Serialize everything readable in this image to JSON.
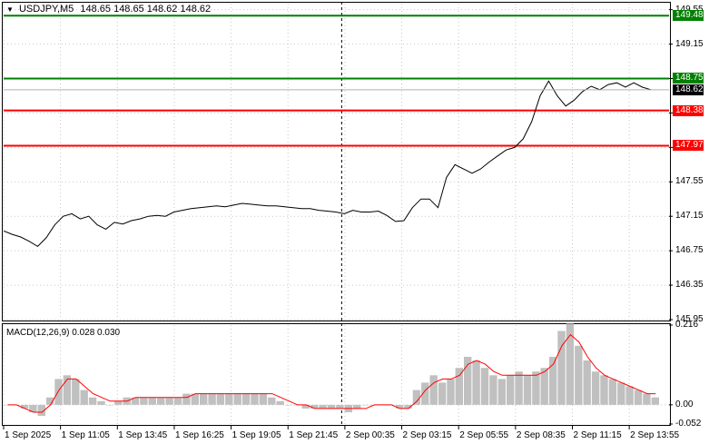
{
  "chart_header": {
    "symbol_tf": "USDJPY,M5",
    "ohlc": "148.65 148.65 148.62 148.62",
    "collapse_icon": "triangle-down-icon"
  },
  "macd_header": {
    "label": "MACD(12,26,9) 0.028 0.030"
  },
  "price_axis": {
    "ticks": [
      "149.55",
      "149.15",
      "148.75",
      "148.35",
      "147.95",
      "147.55",
      "147.15",
      "146.75",
      "146.35",
      "145.95"
    ]
  },
  "macd_axis": {
    "ticks": [
      "0.216",
      "0.00",
      "-0.052"
    ]
  },
  "levels": [
    {
      "label": "149.48",
      "value": 149.48,
      "color": "#008000",
      "kind": "target"
    },
    {
      "label": "148.75",
      "value": 148.75,
      "color": "#008000",
      "kind": "entry"
    },
    {
      "label": "148.38",
      "value": 148.38,
      "color": "#ff0000",
      "kind": "entry"
    },
    {
      "label": "147.97",
      "value": 147.97,
      "color": "#ff0000",
      "kind": "target"
    }
  ],
  "current_price": {
    "label": "148.62",
    "value": 148.62
  },
  "time_axis": {
    "ticks": [
      "1 Sep 2025",
      "1 Sep 11:05",
      "1 Sep 13:45",
      "1 Sep 16:25",
      "1 Sep 19:05",
      "1 Sep 21:45",
      "2 Sep 00:35",
      "2 Sep 03:15",
      "2 Sep 05:55",
      "2 Sep 08:35",
      "2 Sep 11:15",
      "2 Sep 13:55"
    ]
  },
  "chart_data": {
    "type": "line",
    "title": "USDJPY,M5",
    "ylim": [
      145.95,
      149.62
    ],
    "price_series": [
      146.98,
      146.94,
      146.91,
      146.86,
      146.8,
      146.9,
      147.05,
      147.15,
      147.18,
      147.12,
      147.15,
      147.05,
      147.0,
      147.08,
      147.06,
      147.1,
      147.12,
      147.15,
      147.16,
      147.15,
      147.2,
      147.22,
      147.24,
      147.25,
      147.26,
      147.27,
      147.26,
      147.28,
      147.3,
      147.29,
      147.28,
      147.27,
      147.27,
      147.26,
      147.25,
      147.24,
      147.24,
      147.22,
      147.21,
      147.2,
      147.18,
      147.22,
      147.2,
      147.2,
      147.21,
      147.16,
      147.09,
      147.1,
      147.25,
      147.35,
      147.35,
      147.25,
      147.6,
      147.75,
      147.7,
      147.65,
      147.7,
      147.78,
      147.85,
      147.92,
      147.95,
      148.05,
      148.25,
      148.55,
      148.72,
      148.55,
      148.43,
      148.5,
      148.6,
      148.66,
      148.62,
      148.68,
      148.7,
      148.65,
      148.7,
      148.65,
      148.62
    ],
    "macd_ylim": [
      -0.052,
      0.216
    ],
    "macd_histogram": [
      0.0,
      0.0,
      -0.01,
      -0.02,
      -0.03,
      0.02,
      0.07,
      0.08,
      0.07,
      0.04,
      0.02,
      0.01,
      0.0,
      0.01,
      0.02,
      0.02,
      0.02,
      0.02,
      0.02,
      0.02,
      0.02,
      0.03,
      0.03,
      0.03,
      0.03,
      0.03,
      0.03,
      0.03,
      0.03,
      0.03,
      0.03,
      0.02,
      0.01,
      0.0,
      0.0,
      -0.01,
      -0.01,
      -0.01,
      -0.01,
      -0.01,
      -0.02,
      -0.01,
      0.0,
      0.0,
      0.0,
      0.0,
      -0.01,
      -0.01,
      0.04,
      0.06,
      0.08,
      0.06,
      0.07,
      0.1,
      0.13,
      0.12,
      0.1,
      0.08,
      0.07,
      0.08,
      0.09,
      0.08,
      0.09,
      0.1,
      0.13,
      0.2,
      0.22,
      0.16,
      0.12,
      0.09,
      0.08,
      0.07,
      0.06,
      0.05,
      0.04,
      0.03,
      0.02
    ],
    "macd_signal": [
      0.0,
      0.0,
      -0.01,
      -0.02,
      -0.02,
      0.0,
      0.04,
      0.07,
      0.07,
      0.05,
      0.03,
      0.02,
      0.01,
      0.01,
      0.01,
      0.02,
      0.02,
      0.02,
      0.02,
      0.02,
      0.02,
      0.02,
      0.03,
      0.03,
      0.03,
      0.03,
      0.03,
      0.03,
      0.03,
      0.03,
      0.03,
      0.03,
      0.02,
      0.01,
      0.0,
      0.0,
      -0.01,
      -0.01,
      -0.01,
      -0.01,
      -0.01,
      -0.01,
      -0.01,
      0.0,
      0.0,
      0.0,
      -0.01,
      -0.01,
      0.01,
      0.04,
      0.06,
      0.07,
      0.07,
      0.08,
      0.11,
      0.12,
      0.11,
      0.09,
      0.08,
      0.08,
      0.08,
      0.08,
      0.08,
      0.09,
      0.11,
      0.16,
      0.19,
      0.17,
      0.13,
      0.1,
      0.08,
      0.07,
      0.06,
      0.05,
      0.04,
      0.03,
      0.03
    ],
    "crosshair_time": "1 Sep 23:15",
    "grid": true
  }
}
